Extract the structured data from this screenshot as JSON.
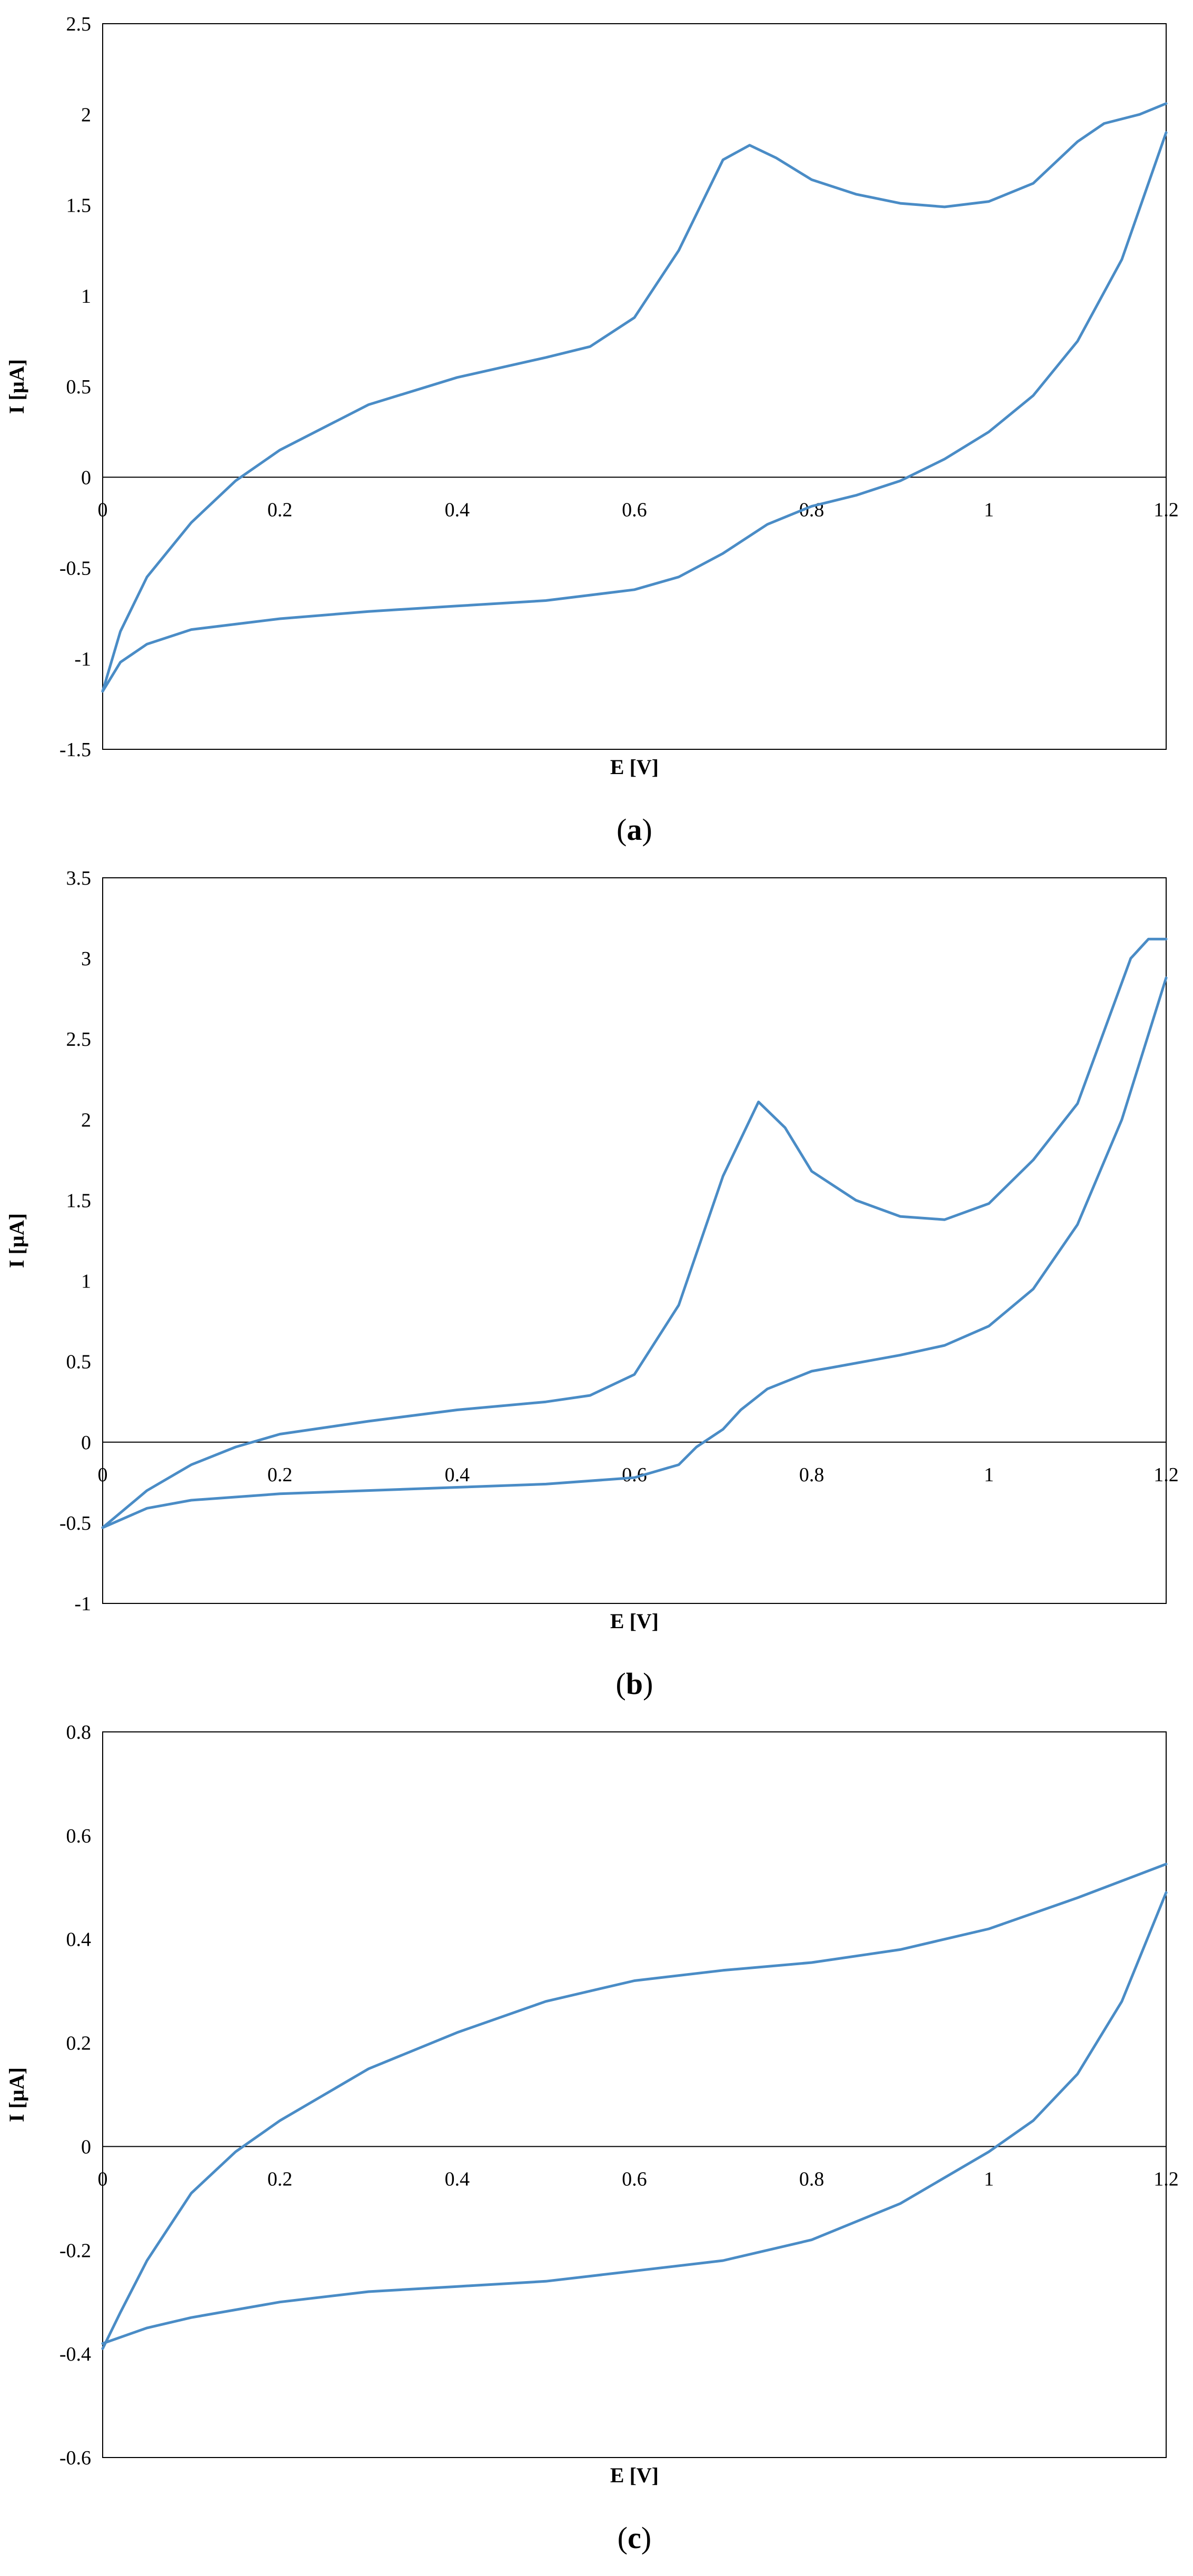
{
  "colors": {
    "series": "#4a8cc6",
    "axis": "#000000",
    "frame": "#000000"
  },
  "chart_data": [
    {
      "id": "a",
      "type": "line",
      "caption_letter": "a",
      "xlabel": "E [V]",
      "ylabel": "I [µA]",
      "xlim": [
        0,
        1.2
      ],
      "ylim": [
        -1.5,
        2.5
      ],
      "xticks": [
        "0",
        "0.2",
        "0.4",
        "0.6",
        "0.8",
        "1",
        "1.2"
      ],
      "yticks": [
        "2.5",
        "2",
        "1.5",
        "1",
        "0.5",
        "0",
        "-0.5",
        "-1",
        "-1.5"
      ],
      "grid": false,
      "legend": "none",
      "series": [
        {
          "values": [
            [
              0,
              -1.18
            ],
            [
              0.02,
              -0.85
            ],
            [
              0.05,
              -0.55
            ],
            [
              0.1,
              -0.25
            ],
            [
              0.15,
              -0.02
            ],
            [
              0.2,
              0.15
            ],
            [
              0.3,
              0.4
            ],
            [
              0.4,
              0.55
            ],
            [
              0.5,
              0.66
            ],
            [
              0.55,
              0.72
            ],
            [
              0.6,
              0.88
            ],
            [
              0.65,
              1.25
            ],
            [
              0.7,
              1.75
            ],
            [
              0.73,
              1.83
            ],
            [
              0.76,
              1.76
            ],
            [
              0.8,
              1.64
            ],
            [
              0.85,
              1.56
            ],
            [
              0.9,
              1.51
            ],
            [
              0.95,
              1.49
            ],
            [
              1.0,
              1.52
            ],
            [
              1.05,
              1.62
            ],
            [
              1.1,
              1.85
            ],
            [
              1.13,
              1.95
            ],
            [
              1.17,
              2.0
            ],
            [
              1.2,
              2.06
            ]
          ]
        },
        {
          "values": [
            [
              1.2,
              1.9
            ],
            [
              1.15,
              1.2
            ],
            [
              1.1,
              0.75
            ],
            [
              1.05,
              0.45
            ],
            [
              1.0,
              0.25
            ],
            [
              0.95,
              0.1
            ],
            [
              0.9,
              -0.02
            ],
            [
              0.85,
              -0.1
            ],
            [
              0.8,
              -0.16
            ],
            [
              0.75,
              -0.26
            ],
            [
              0.7,
              -0.42
            ],
            [
              0.65,
              -0.55
            ],
            [
              0.6,
              -0.62
            ],
            [
              0.5,
              -0.68
            ],
            [
              0.4,
              -0.71
            ],
            [
              0.3,
              -0.74
            ],
            [
              0.2,
              -0.78
            ],
            [
              0.1,
              -0.84
            ],
            [
              0.05,
              -0.92
            ],
            [
              0.02,
              -1.02
            ],
            [
              0,
              -1.18
            ]
          ]
        }
      ]
    },
    {
      "id": "b",
      "type": "line",
      "caption_letter": "b",
      "xlabel": "E [V]",
      "ylabel": "I [µA]",
      "xlim": [
        0,
        1.2
      ],
      "ylim": [
        -1,
        3.5
      ],
      "xticks": [
        "0",
        "0.2",
        "0.4",
        "0.6",
        "0.8",
        "1",
        "1.2"
      ],
      "yticks": [
        "3.5",
        "3",
        "2.5",
        "2",
        "1.5",
        "1",
        "0.5",
        "0",
        "-0.5",
        "-1"
      ],
      "grid": false,
      "legend": "none",
      "series": [
        {
          "values": [
            [
              0,
              -0.53
            ],
            [
              0.05,
              -0.3
            ],
            [
              0.1,
              -0.14
            ],
            [
              0.15,
              -0.03
            ],
            [
              0.2,
              0.05
            ],
            [
              0.3,
              0.13
            ],
            [
              0.4,
              0.2
            ],
            [
              0.5,
              0.25
            ],
            [
              0.55,
              0.29
            ],
            [
              0.6,
              0.42
            ],
            [
              0.65,
              0.85
            ],
            [
              0.7,
              1.65
            ],
            [
              0.74,
              2.11
            ],
            [
              0.77,
              1.95
            ],
            [
              0.8,
              1.68
            ],
            [
              0.85,
              1.5
            ],
            [
              0.9,
              1.4
            ],
            [
              0.95,
              1.38
            ],
            [
              1.0,
              1.48
            ],
            [
              1.05,
              1.75
            ],
            [
              1.1,
              2.1
            ],
            [
              1.13,
              2.55
            ],
            [
              1.16,
              3.0
            ],
            [
              1.18,
              3.12
            ],
            [
              1.2,
              3.12
            ]
          ]
        },
        {
          "values": [
            [
              1.2,
              2.88
            ],
            [
              1.15,
              2.0
            ],
            [
              1.1,
              1.35
            ],
            [
              1.05,
              0.95
            ],
            [
              1.0,
              0.72
            ],
            [
              0.95,
              0.6
            ],
            [
              0.9,
              0.54
            ],
            [
              0.8,
              0.44
            ],
            [
              0.75,
              0.33
            ],
            [
              0.72,
              0.2
            ],
            [
              0.7,
              0.08
            ],
            [
              0.67,
              -0.03
            ],
            [
              0.65,
              -0.14
            ],
            [
              0.6,
              -0.22
            ],
            [
              0.5,
              -0.26
            ],
            [
              0.4,
              -0.28
            ],
            [
              0.3,
              -0.3
            ],
            [
              0.2,
              -0.32
            ],
            [
              0.1,
              -0.36
            ],
            [
              0.05,
              -0.41
            ],
            [
              0,
              -0.53
            ]
          ]
        }
      ]
    },
    {
      "id": "c",
      "type": "line",
      "caption_letter": "c",
      "xlabel": "E [V]",
      "ylabel": "I [µA]",
      "xlim": [
        0,
        1.2
      ],
      "ylim": [
        -0.6,
        0.8
      ],
      "xticks": [
        "0",
        "0.2",
        "0.4",
        "0.6",
        "0.8",
        "1",
        "1.2"
      ],
      "yticks": [
        "0.8",
        "0.6",
        "0.4",
        "0.2",
        "0",
        "-0.2",
        "-0.4",
        "-0.6"
      ],
      "grid": false,
      "legend": "none",
      "series": [
        {
          "values": [
            [
              0,
              -0.39
            ],
            [
              0.02,
              -0.32
            ],
            [
              0.05,
              -0.22
            ],
            [
              0.1,
              -0.09
            ],
            [
              0.15,
              -0.01
            ],
            [
              0.2,
              0.05
            ],
            [
              0.3,
              0.15
            ],
            [
              0.4,
              0.22
            ],
            [
              0.5,
              0.28
            ],
            [
              0.6,
              0.32
            ],
            [
              0.7,
              0.34
            ],
            [
              0.8,
              0.355
            ],
            [
              0.9,
              0.38
            ],
            [
              1.0,
              0.42
            ],
            [
              1.1,
              0.48
            ],
            [
              1.2,
              0.545
            ]
          ]
        },
        {
          "values": [
            [
              1.2,
              0.49
            ],
            [
              1.15,
              0.28
            ],
            [
              1.1,
              0.14
            ],
            [
              1.05,
              0.05
            ],
            [
              1.0,
              -0.01
            ],
            [
              0.9,
              -0.11
            ],
            [
              0.8,
              -0.18
            ],
            [
              0.7,
              -0.22
            ],
            [
              0.6,
              -0.24
            ],
            [
              0.5,
              -0.26
            ],
            [
              0.4,
              -0.27
            ],
            [
              0.3,
              -0.28
            ],
            [
              0.2,
              -0.3
            ],
            [
              0.1,
              -0.33
            ],
            [
              0.05,
              -0.35
            ],
            [
              0,
              -0.38
            ]
          ]
        }
      ]
    }
  ]
}
